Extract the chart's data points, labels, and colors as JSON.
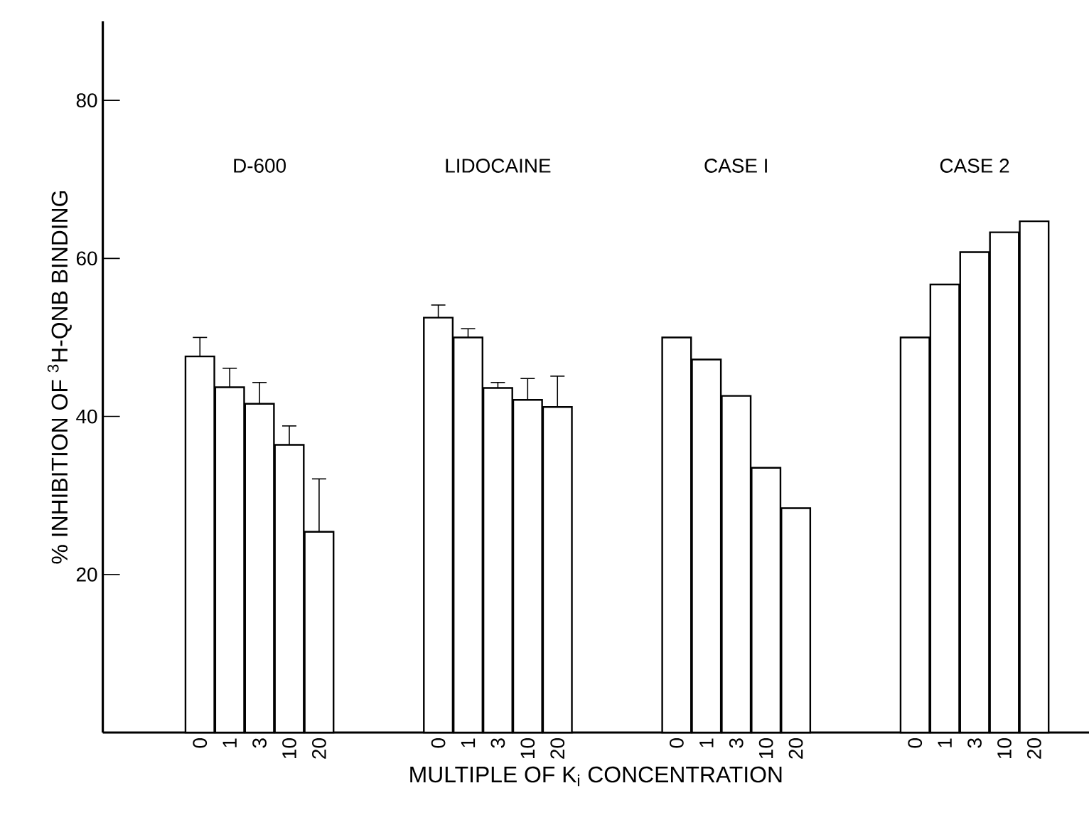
{
  "chart_data": {
    "type": "bar",
    "xlabel": "MULTIPLE OF K$_{i}$ CONCENTRATION",
    "ylabel": "% INHIBITION OF $^{3}$H-QNB BINDING",
    "categories": [
      "0",
      "1",
      "3",
      "10",
      "20",
      null,
      null,
      null,
      "0",
      "1",
      "3",
      "10",
      "20",
      null,
      null,
      null,
      "0",
      "1",
      "3",
      "10",
      "20",
      null,
      null,
      null,
      "0",
      "1",
      "3",
      "10",
      "20"
    ],
    "values": [
      47.6,
      43.7,
      41.6,
      36.4,
      25.4,
      null,
      null,
      null,
      52.5,
      50.0,
      43.6,
      42.1,
      41.2,
      null,
      null,
      null,
      50.0,
      47.2,
      42.6,
      33.5,
      28.4,
      null,
      null,
      null,
      50.0,
      56.7,
      60.8,
      63.3,
      64.7
    ],
    "errors": [
      [
        47.6,
        50.0
      ],
      [
        43.7,
        46.1
      ],
      [
        41.6,
        44.3
      ],
      [
        36.4,
        38.8
      ],
      [
        25.4,
        32.1
      ],
      null,
      null,
      null,
      [
        52.5,
        54.1
      ],
      [
        50.0,
        51.1
      ],
      [
        43.6,
        44.3
      ],
      [
        42.1,
        44.8
      ],
      [
        41.2,
        45.1
      ],
      null,
      null,
      null,
      null,
      null,
      null,
      null,
      null,
      null,
      null,
      null,
      null,
      null,
      null,
      null,
      null
    ],
    "color": "#ffffff",
    "annotations": [
      "D-600",
      "LIDOCAINE",
      "CASE I",
      "CASE 2"
    ],
    "ylim": [
      0,
      90
    ],
    "yticks": [
      20,
      40,
      60,
      80
    ],
    "grid": false
  }
}
